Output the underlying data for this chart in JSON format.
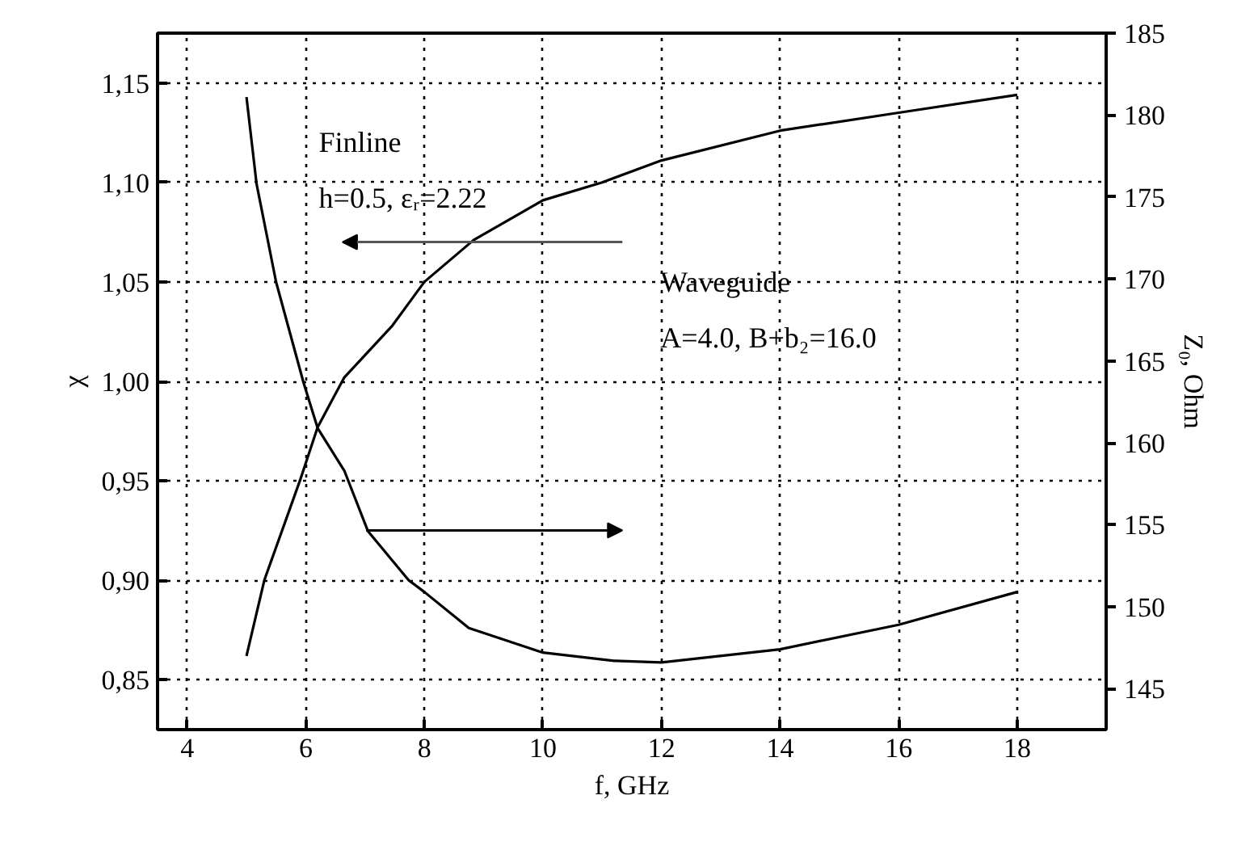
{
  "chart_data": {
    "type": "line",
    "xlabel": "f, GHz",
    "ylabel": "χ",
    "y2label": "Z₀, Ohm",
    "xlim": [
      3.5,
      19.5
    ],
    "xticks": [
      4,
      6,
      8,
      10,
      12,
      14,
      16,
      18
    ],
    "ylim": [
      0.825,
      1.175
    ],
    "yticks": [
      {
        "value": 0.85,
        "label": "0,85"
      },
      {
        "value": 0.9,
        "label": "0,90"
      },
      {
        "value": 0.95,
        "label": "0,95"
      },
      {
        "value": 1.0,
        "label": "1,00"
      },
      {
        "value": 1.05,
        "label": "1,05"
      },
      {
        "value": 1.1,
        "label": "1,10"
      },
      {
        "value": 1.15,
        "label": "1,15"
      }
    ],
    "y2lim": [
      142.5,
      185
    ],
    "y2ticks": [
      145,
      150,
      155,
      160,
      165,
      170,
      175,
      180,
      185
    ],
    "grid": true,
    "marker": "none",
    "line_style": "solid",
    "series": [
      {
        "color": "#000000",
        "x": [
          5,
          5.3,
          5.9,
          6.2,
          6.65,
          7.46,
          8,
          8.83,
          10,
          11,
          12,
          14,
          16,
          18
        ],
        "values": [
          0.862,
          0.9,
          0.95,
          0.977,
          1.002,
          1.028,
          1.05,
          1.071,
          1.091,
          1.1,
          1.111,
          1.126,
          1.135,
          1.144
        ]
      },
      {
        "color": "#000000",
        "axis": "y2",
        "x": [
          5,
          5.17,
          5.5,
          5.96,
          6.2,
          6.65,
          7.05,
          7.74,
          8,
          8.75,
          10,
          11.2,
          12,
          14,
          16,
          18
        ],
        "values": [
          181.1,
          175.8,
          169.8,
          163.7,
          160.9,
          158.3,
          154.6,
          151.6,
          150.9,
          148.7,
          147.2,
          146.7,
          146.6,
          147.4,
          148.9,
          150.9
        ]
      }
    ],
    "annotations": [
      "Finline",
      "h=0.5, εᵣ=2.22",
      "Waveguide",
      "A=4.0, B+b₂=16.0"
    ]
  }
}
